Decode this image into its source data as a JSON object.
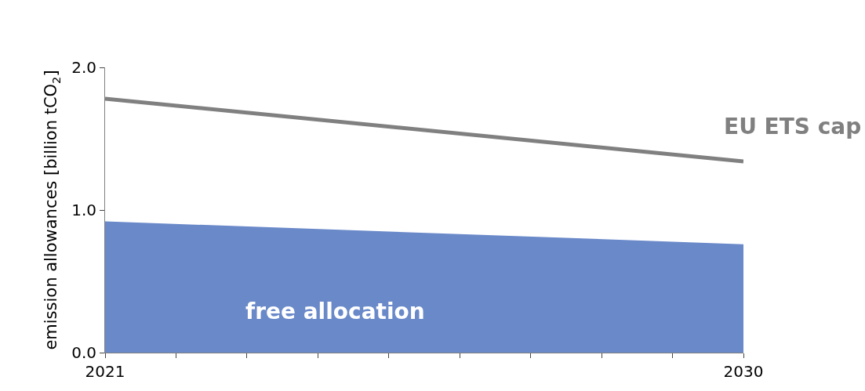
{
  "chart_data": {
    "type": "line",
    "ylabel": "emission allowances [billion tCO$_{2}$]",
    "x": [
      2021,
      2030
    ],
    "series": [
      {
        "name": "EU ETS cap",
        "color": "#808080",
        "values": [
          1.78,
          1.34
        ]
      },
      {
        "name": "free allocation",
        "type": "area",
        "color": "#6a89c9",
        "values": [
          0.92,
          0.76
        ]
      }
    ],
    "xlim": [
      2021,
      2030
    ],
    "xticks": [
      2021,
      {
        "value": 2022,
        "label": null
      },
      {
        "value": 2023,
        "label": null
      },
      {
        "value": 2024,
        "label": null
      },
      {
        "value": 2025,
        "label": null
      },
      {
        "value": 2026,
        "label": null
      },
      {
        "value": 2027,
        "label": null
      },
      {
        "value": 2028,
        "label": null
      },
      {
        "value": 2029,
        "label": null
      },
      2030
    ],
    "ylim": [
      0,
      2
    ],
    "yticks": [
      {
        "value": 0,
        "label": "0.0"
      },
      {
        "value": 1,
        "label": "1.0"
      },
      {
        "value": 2,
        "label": "2.0"
      }
    ],
    "grid": false,
    "legend": false,
    "marker": "none",
    "line_style": "solid"
  }
}
